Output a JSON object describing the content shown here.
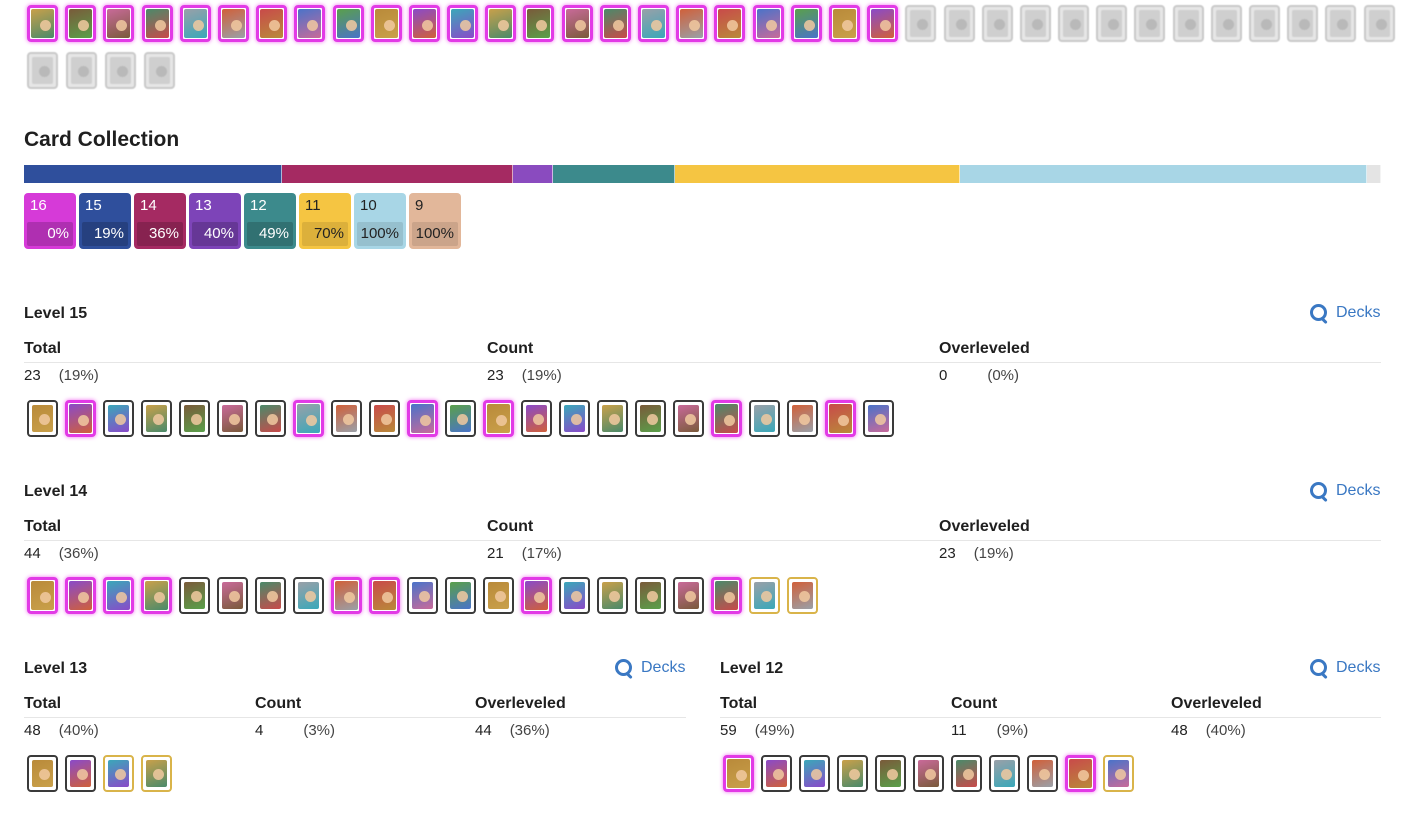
{
  "collection": {
    "title": "Card Collection",
    "levels": [
      {
        "level": "16",
        "percent": "0%",
        "color": "#d63ad8"
      },
      {
        "level": "15",
        "percent": "19%",
        "color": "#2f4f9c"
      },
      {
        "level": "14",
        "percent": "36%",
        "color": "#a52a62"
      },
      {
        "level": "13",
        "percent": "40%",
        "color": "#7d44b8"
      },
      {
        "level": "12",
        "percent": "49%",
        "color": "#3c8a8c"
      },
      {
        "level": "11",
        "percent": "70%",
        "color": "#f5c542"
      },
      {
        "level": "10",
        "percent": "100%",
        "color": "#a8d6e6"
      },
      {
        "level": "9",
        "percent": "100%",
        "color": "#e2b79a"
      }
    ],
    "bar_fractions": [
      0.19,
      0.17,
      0.03,
      0.09,
      0.21,
      0.3,
      0.01
    ]
  },
  "level15": {
    "title": "Level 15",
    "decks_label": "Decks",
    "total_label": "Total",
    "total_value": "23",
    "total_pct": "(19%)",
    "count_label": "Count",
    "count_value": "23",
    "count_pct": "(19%)",
    "over_label": "Overleveled",
    "over_value": "0",
    "over_pct": "(0%)"
  },
  "level14": {
    "title": "Level 14",
    "decks_label": "Decks",
    "total_label": "Total",
    "total_value": "44",
    "total_pct": "(36%)",
    "count_label": "Count",
    "count_value": "21",
    "count_pct": "(17%)",
    "over_label": "Overleveled",
    "over_value": "23",
    "over_pct": "(19%)"
  },
  "level13": {
    "title": "Level 13",
    "decks_label": "Decks",
    "total_label": "Total",
    "total_value": "48",
    "total_pct": "(40%)",
    "count_label": "Count",
    "count_value": "4",
    "count_pct": "(3%)",
    "over_label": "Overleveled",
    "over_value": "44",
    "over_pct": "(36%)"
  },
  "level12": {
    "title": "Level 12",
    "decks_label": "Decks",
    "total_label": "Total",
    "total_value": "59",
    "total_pct": "(49%)",
    "count_label": "Count",
    "count_value": "11",
    "count_pct": "(9%)",
    "over_label": "Overleveled",
    "over_value": "48",
    "over_pct": "(40%)"
  },
  "card_strips": {
    "top_row_1": {
      "colored": 23,
      "grey": 13
    },
    "top_row_2": {
      "grey": 4
    },
    "level15": {
      "count": 23
    },
    "level14": {
      "count": 21
    },
    "level13": {
      "count": 4
    },
    "level12": {
      "count": 11
    }
  }
}
